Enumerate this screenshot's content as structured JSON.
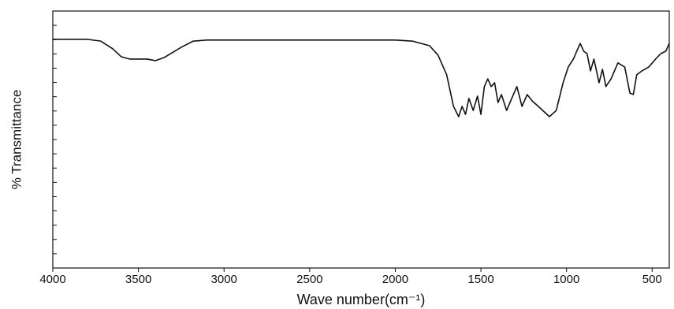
{
  "chart_data": {
    "type": "line",
    "x_label": "Wave number(cm⁻¹)",
    "y_label": "% Transmittance",
    "color": "#111111",
    "xlim": [
      4000,
      400
    ],
    "ylim": [
      0,
      100
    ],
    "xticks": [
      4000,
      3500,
      3000,
      2500,
      2000,
      1500,
      1000,
      500
    ],
    "x": [
      4000,
      3800,
      3720,
      3650,
      3600,
      3550,
      3450,
      3400,
      3350,
      3250,
      3180,
      3100,
      2500,
      2000,
      1900,
      1800,
      1750,
      1700,
      1660,
      1630,
      1610,
      1590,
      1570,
      1545,
      1520,
      1500,
      1480,
      1460,
      1440,
      1420,
      1400,
      1380,
      1350,
      1320,
      1290,
      1260,
      1230,
      1200,
      1150,
      1100,
      1060,
      1020,
      990,
      960,
      940,
      920,
      900,
      880,
      860,
      840,
      810,
      790,
      770,
      740,
      700,
      660,
      630,
      610,
      590,
      560,
      520,
      480,
      450,
      420,
      400
    ],
    "values": [
      89.0,
      89.0,
      88.3,
      85.3,
      82.2,
      81.3,
      81.3,
      80.7,
      81.9,
      85.9,
      88.3,
      88.7,
      88.7,
      88.7,
      88.3,
      86.5,
      82.8,
      75.2,
      62.9,
      58.9,
      62.9,
      59.8,
      66.0,
      61.3,
      66.9,
      59.8,
      70.6,
      73.6,
      70.6,
      72.1,
      64.4,
      67.5,
      61.3,
      66.0,
      70.6,
      62.9,
      67.5,
      65.0,
      62.0,
      58.9,
      61.3,
      72.1,
      78.2,
      81.3,
      84.4,
      87.4,
      84.4,
      83.4,
      76.7,
      81.3,
      72.1,
      77.3,
      70.6,
      73.6,
      79.8,
      78.2,
      68.1,
      67.5,
      75.2,
      76.7,
      78.2,
      81.3,
      83.4,
      84.4,
      87.4
    ]
  }
}
